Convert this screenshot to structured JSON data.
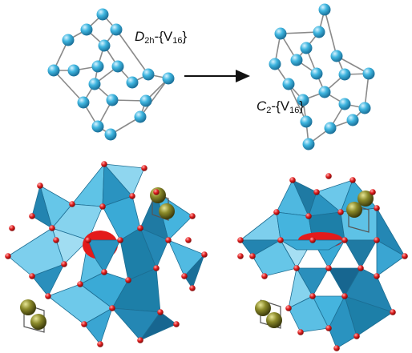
{
  "labels": {
    "left_symbol": "D",
    "left_sub": "2h",
    "left_rest": "-{V",
    "left_num": "16",
    "left_close": "}",
    "right_symbol": "C",
    "right_sub": "2",
    "right_rest": "-{V",
    "right_num": "16",
    "right_close": "}"
  },
  "colors": {
    "vanadium_atom": "#3fb6e0",
    "cage_bond": "#8a8a8a",
    "polyhedron_face_light": "#8fd6ef",
    "polyhedron_face_mid": "#3db0dc",
    "polyhedron_face_dark": "#1d7fa8",
    "oxygen_atom": "#e22020",
    "central_anion": "#e31b1b",
    "metal_atom": "#8b8a2a",
    "arrow": "#111111"
  },
  "panels": [
    {
      "id": "top-left",
      "content": "D2h V16 cage (ball-and-stick)"
    },
    {
      "id": "top-right",
      "content": "C2 V16 cage (ball-and-stick)"
    },
    {
      "id": "bottom-left",
      "content": "polyhedral cluster with two capping dimers"
    },
    {
      "id": "bottom-right",
      "content": "polyhedral cluster with two capping dimers"
    }
  ]
}
